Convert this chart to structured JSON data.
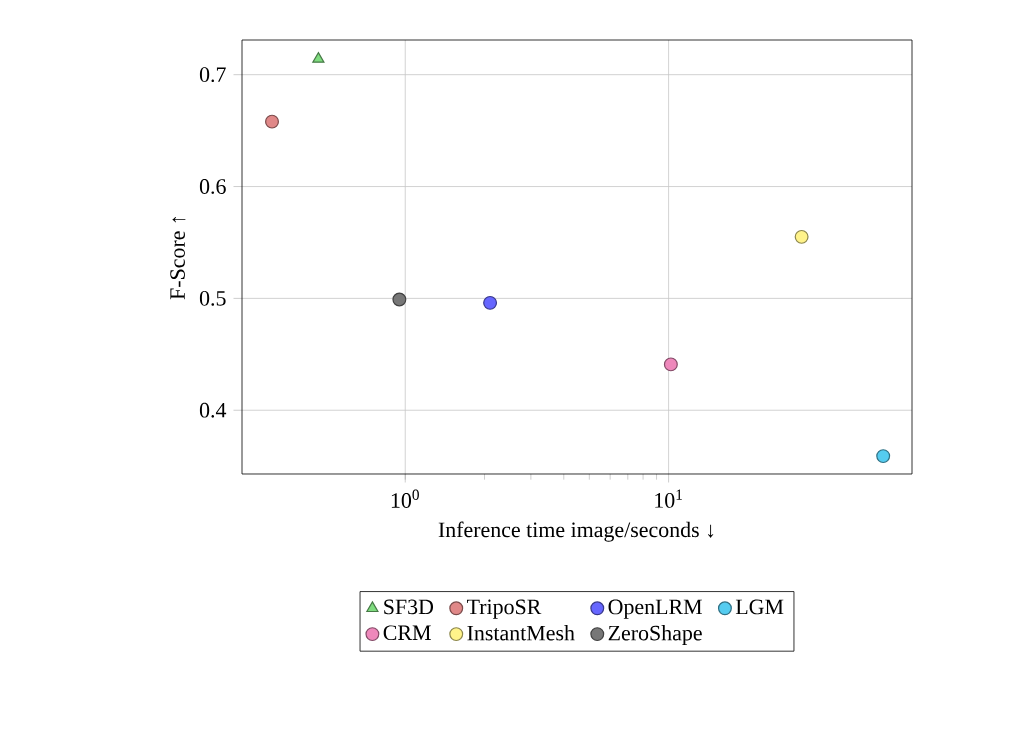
{
  "chart_data": {
    "type": "scatter",
    "xlabel": "Inference time image/seconds ↓",
    "ylabel": "F-Score ↑",
    "log": "x",
    "grid": true,
    "legend": "bottom",
    "xlim": [
      0.24,
      84
    ],
    "ylim": [
      0.343,
      0.731
    ],
    "xticks": [
      {
        "value": 1,
        "label": "10$^{0}$"
      },
      {
        "value": 10,
        "label": "10$^{1}$"
      }
    ],
    "yticks": [
      0.4,
      0.5,
      0.6,
      0.7
    ],
    "series": [
      {
        "name": "SF3D",
        "color": "#7fdc7f",
        "marker": "triangle",
        "x": [
          0.468
        ],
        "values": [
          0.714
        ]
      },
      {
        "name": "TripoSR",
        "color": "#e08888",
        "marker": "circle",
        "x": [
          0.312
        ],
        "values": [
          0.658
        ]
      },
      {
        "name": "OpenLRM",
        "color": "#6666ff",
        "marker": "circle",
        "x": [
          2.1
        ],
        "values": [
          0.496
        ]
      },
      {
        "name": "LGM",
        "color": "#55ccf0",
        "marker": "circle",
        "x": [
          65.3
        ],
        "values": [
          0.359
        ]
      },
      {
        "name": "CRM",
        "color": "#ee88bb",
        "marker": "circle",
        "x": [
          10.2
        ],
        "values": [
          0.441
        ]
      },
      {
        "name": "InstantMesh",
        "color": "#fff38a",
        "marker": "circle",
        "x": [
          32
        ],
        "values": [
          0.555
        ]
      },
      {
        "name": "ZeroShape",
        "color": "#777777",
        "marker": "circle",
        "x": [
          0.95
        ],
        "values": [
          0.499
        ]
      }
    ]
  }
}
